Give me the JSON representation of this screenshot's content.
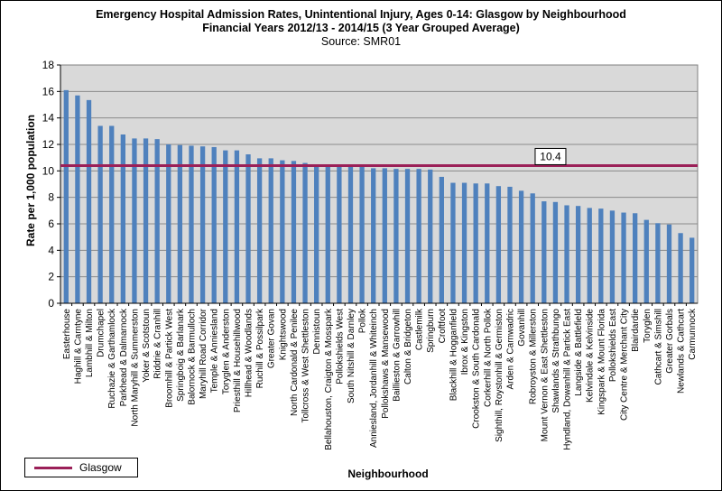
{
  "chart_data": {
    "type": "bar",
    "title": "Emergency Hospital Admission Rates, Unintentional Injury, Ages 0-14: Glasgow by Neighbourhood",
    "subtitle": "Financial Years 2012/13 - 2014/15 (3 Year Grouped Average)",
    "source": "Source: SMR01",
    "xlabel": "Neighbourhood",
    "ylabel": "Rate per 1,000 population",
    "ylim": [
      0,
      18
    ],
    "yticks": [
      0,
      2,
      4,
      6,
      8,
      10,
      12,
      14,
      16,
      18
    ],
    "grid": true,
    "bar_color": "#4f81bd",
    "reference_line": {
      "name": "Glasgow",
      "value": 10.4,
      "label": "10.4",
      "color": "#9b2058"
    },
    "legend": {
      "position": "bottom-left",
      "entries": [
        "Glasgow"
      ]
    },
    "categories": [
      "Easterhouse",
      "Haghill & Carntyne",
      "Lambhill & Milton",
      "Drumchapel",
      "Ruchazie & Garthamlock",
      "Parkhead & Dalmarnock",
      "North Maryhill & Summerston",
      "Yoker & Scotstoun",
      "Riddrie & Cranhill",
      "Broomhill & Partick West",
      "Springboig & Barlanark",
      "Balornock & Barmulloch",
      "Maryhill Road Corridor",
      "Temple & Anniesland",
      "Toryglen & Anderston",
      "Priesthill & Househillwood",
      "Hillhead & Woodlands",
      "Ruchill & Possilpark",
      "Greater Govan",
      "Knightswood",
      "North Cardonald & Penilee",
      "Tollcross & West Shettleston",
      "Dennistoun",
      "Bellahouston, Craigton & Mosspark",
      "Pollokshields West",
      "South Nitshill & Darnley",
      "Pollok",
      "Anniesland, Jordanhill & Whiteinch",
      "Pollokshaws & Mansewood",
      "Baillieston & Garrowhill",
      "Calton & Bridgeton",
      "Castlemilk",
      "Springburn",
      "Croftfoot",
      "Blackhill & Hogganfield",
      "Ibrox & Kingston",
      "Crookston & South Cardonald",
      "Corkerhill & North Pollok",
      "Sighthill, Roystonhill & Germiston",
      "Arden & Carnwadric",
      "Govanhill",
      "Robroyston & Millerston",
      "Mount Vernon & East Shettleston",
      "Shawlands & Strathbungo",
      "Hyndland, Dowanhill & Partick East",
      "Langside & Battlefield",
      "Kelvindale & Kelvinside",
      "Kingspark & Mount Florida",
      "Pollokshields East",
      "City Centre & Merchant City",
      "Blairdardie",
      "Toryglen",
      "Cathcart & Simshill",
      "Greater Gorbals",
      "Newlands & Cathcart",
      "Carmunnock"
    ],
    "values": [
      16.1,
      15.7,
      15.35,
      13.4,
      13.4,
      12.75,
      12.45,
      12.45,
      12.4,
      12.0,
      11.95,
      11.9,
      11.85,
      11.8,
      11.55,
      11.55,
      11.25,
      10.95,
      10.95,
      10.8,
      10.75,
      10.6,
      10.5,
      10.5,
      10.45,
      10.45,
      10.4,
      10.2,
      10.2,
      10.15,
      10.15,
      10.15,
      10.1,
      9.55,
      9.1,
      9.1,
      9.05,
      9.05,
      8.85,
      8.8,
      8.5,
      8.3,
      7.7,
      7.65,
      7.4,
      7.35,
      7.2,
      7.15,
      7.0,
      6.85,
      6.8,
      6.3,
      6.05,
      5.95,
      5.3,
      4.95
    ]
  }
}
